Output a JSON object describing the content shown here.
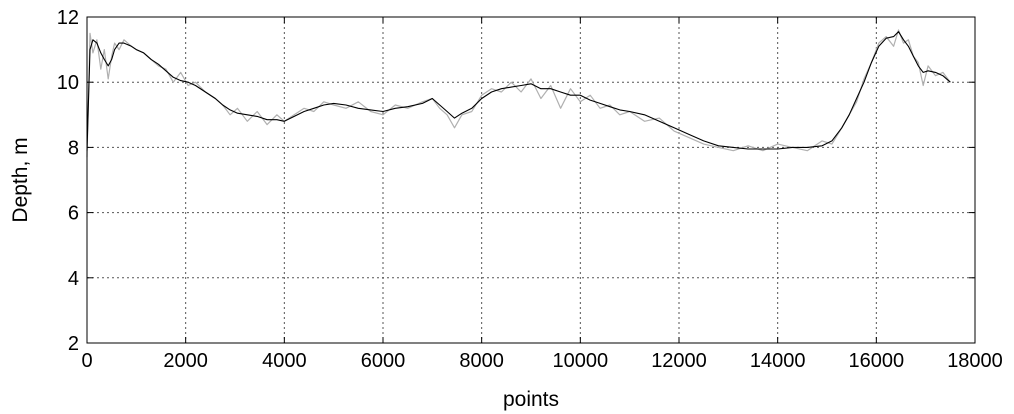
{
  "chart_data": {
    "type": "line",
    "title": "",
    "xlabel": "points",
    "ylabel": "Depth, m",
    "xlim": [
      0,
      18000
    ],
    "ylim": [
      2,
      12
    ],
    "xticks": [
      0,
      2000,
      4000,
      6000,
      8000,
      10000,
      12000,
      14000,
      16000,
      18000
    ],
    "yticks": [
      2,
      4,
      6,
      8,
      10,
      12
    ],
    "grid": true,
    "legend": "none",
    "series": [
      {
        "role": "raw",
        "color": "#b0b0b0",
        "x": [
          0,
          60,
          120,
          200,
          280,
          350,
          430,
          500,
          560,
          650,
          750,
          900,
          1000,
          1150,
          1300,
          1450,
          1600,
          1750,
          1900,
          2050,
          2200,
          2400,
          2600,
          2750,
          2900,
          3050,
          3250,
          3450,
          3650,
          3850,
          4000,
          4200,
          4400,
          4600,
          4800,
          5000,
          5250,
          5500,
          5750,
          6000,
          6250,
          6500,
          6800,
          7000,
          7150,
          7300,
          7450,
          7600,
          7800,
          8000,
          8200,
          8400,
          8600,
          8800,
          9000,
          9200,
          9400,
          9600,
          9800,
          10000,
          10200,
          10400,
          10600,
          10800,
          11000,
          11300,
          11600,
          11900,
          12200,
          12500,
          12800,
          13100,
          13400,
          13700,
          14000,
          14300,
          14600,
          14900,
          15100,
          15300,
          15450,
          15600,
          15750,
          15900,
          16050,
          16200,
          16350,
          16450,
          16550,
          16650,
          16750,
          16850,
          16950,
          17050,
          17200,
          17350,
          17500
        ],
        "y": [
          7.7,
          11.5,
          10.9,
          11.3,
          10.4,
          11.0,
          10.1,
          10.8,
          11.2,
          11.0,
          11.3,
          11.1,
          11.0,
          10.9,
          10.7,
          10.5,
          10.4,
          10.0,
          10.3,
          9.9,
          10.0,
          9.7,
          9.5,
          9.3,
          9.0,
          9.2,
          8.8,
          9.1,
          8.7,
          9.0,
          8.8,
          9.0,
          9.2,
          9.1,
          9.4,
          9.3,
          9.2,
          9.4,
          9.1,
          9.0,
          9.3,
          9.2,
          9.4,
          9.5,
          9.2,
          9.0,
          8.6,
          9.0,
          9.1,
          9.6,
          9.8,
          9.7,
          10.0,
          9.7,
          10.1,
          9.5,
          9.9,
          9.2,
          9.8,
          9.4,
          9.6,
          9.2,
          9.3,
          9.0,
          9.1,
          8.8,
          8.9,
          8.5,
          8.3,
          8.1,
          8.0,
          7.9,
          8.05,
          7.9,
          8.1,
          8.0,
          7.9,
          8.2,
          8.1,
          8.6,
          9.0,
          9.4,
          10.1,
          10.6,
          11.2,
          11.4,
          11.1,
          11.6,
          11.2,
          11.3,
          10.8,
          10.6,
          9.9,
          10.5,
          10.2,
          10.3,
          10.0
        ]
      },
      {
        "role": "filtered",
        "color": "#000000",
        "x": [
          0,
          60,
          120,
          200,
          280,
          350,
          430,
          500,
          560,
          650,
          750,
          900,
          1000,
          1150,
          1300,
          1450,
          1600,
          1750,
          1900,
          2050,
          2200,
          2400,
          2600,
          2750,
          2900,
          3050,
          3250,
          3450,
          3650,
          3850,
          4000,
          4200,
          4400,
          4600,
          4800,
          5000,
          5250,
          5500,
          5750,
          6000,
          6250,
          6500,
          6800,
          7000,
          7150,
          7300,
          7450,
          7600,
          7800,
          8000,
          8200,
          8400,
          8600,
          8800,
          9000,
          9200,
          9400,
          9600,
          9800,
          10000,
          10200,
          10400,
          10600,
          10800,
          11000,
          11300,
          11600,
          11900,
          12200,
          12500,
          12800,
          13100,
          13400,
          13700,
          14000,
          14300,
          14600,
          14900,
          15100,
          15300,
          15450,
          15600,
          15750,
          15900,
          16050,
          16200,
          16350,
          16450,
          16550,
          16650,
          16750,
          16850,
          16950,
          17050,
          17200,
          17350,
          17500
        ],
        "y": [
          7.9,
          11.0,
          11.3,
          11.2,
          10.9,
          10.7,
          10.5,
          10.7,
          11.0,
          11.2,
          11.2,
          11.1,
          11.0,
          10.9,
          10.7,
          10.55,
          10.35,
          10.15,
          10.05,
          10.0,
          9.9,
          9.7,
          9.5,
          9.3,
          9.15,
          9.05,
          9.0,
          8.95,
          8.85,
          8.85,
          8.8,
          8.95,
          9.1,
          9.2,
          9.3,
          9.35,
          9.3,
          9.2,
          9.15,
          9.1,
          9.2,
          9.25,
          9.35,
          9.5,
          9.3,
          9.1,
          8.9,
          9.05,
          9.2,
          9.5,
          9.7,
          9.8,
          9.85,
          9.9,
          9.95,
          9.8,
          9.8,
          9.7,
          9.6,
          9.6,
          9.45,
          9.35,
          9.25,
          9.15,
          9.1,
          9.0,
          8.8,
          8.6,
          8.4,
          8.2,
          8.05,
          8.0,
          7.95,
          7.95,
          7.95,
          8.0,
          8.0,
          8.05,
          8.2,
          8.6,
          9.0,
          9.5,
          10.0,
          10.6,
          11.1,
          11.35,
          11.4,
          11.55,
          11.3,
          11.1,
          10.8,
          10.5,
          10.3,
          10.35,
          10.3,
          10.2,
          10.0
        ]
      }
    ]
  }
}
